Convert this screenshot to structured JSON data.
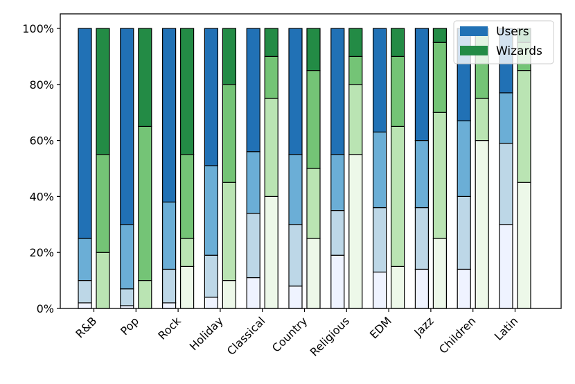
{
  "chart_data": {
    "type": "bar",
    "stacked": true,
    "normalized_percent": true,
    "categories": [
      "R&B",
      "Pop",
      "Rock",
      "Holiday",
      "Classical",
      "Country",
      "Religious",
      "EDM",
      "Jazz",
      "Children",
      "Latin"
    ],
    "y_ticks": [
      "0%",
      "20%",
      "40%",
      "60%",
      "80%",
      "100%"
    ],
    "ylim": [
      0,
      100
    ],
    "legend": {
      "position": "top-right",
      "entries": [
        {
          "label": "Users",
          "color": "#2171b5"
        },
        {
          "label": "Wizards",
          "color": "#238b45"
        }
      ]
    },
    "series": [
      {
        "name": "Users",
        "segment_colors": [
          "#eff3ff",
          "#bdd7e7",
          "#6baed6",
          "#2171b5"
        ],
        "cumulative": [
          [
            2,
            10,
            25,
            100
          ],
          [
            1,
            7,
            30,
            100
          ],
          [
            2,
            14,
            38,
            100
          ],
          [
            4,
            19,
            51,
            100
          ],
          [
            11,
            34,
            56,
            100
          ],
          [
            8,
            30,
            55,
            100
          ],
          [
            19,
            35,
            55,
            100
          ],
          [
            13,
            36,
            63,
            100
          ],
          [
            14,
            36,
            60,
            100
          ],
          [
            14,
            40,
            67,
            100
          ],
          [
            30,
            59,
            77,
            100
          ]
        ]
      },
      {
        "name": "Wizards",
        "segment_colors": [
          "#edf8e9",
          "#bae4b3",
          "#74c476",
          "#238b45"
        ],
        "cumulative": [
          [
            0,
            20,
            55,
            100
          ],
          [
            0,
            10,
            65,
            100
          ],
          [
            15,
            25,
            55,
            100
          ],
          [
            10,
            45,
            80,
            100
          ],
          [
            40,
            75,
            90,
            100
          ],
          [
            25,
            50,
            85,
            100
          ],
          [
            55,
            80,
            90,
            100
          ],
          [
            15,
            65,
            90,
            100
          ],
          [
            25,
            70,
            95,
            100
          ],
          [
            60,
            75,
            100,
            100
          ],
          [
            45,
            85,
            95,
            100
          ]
        ]
      }
    ]
  }
}
